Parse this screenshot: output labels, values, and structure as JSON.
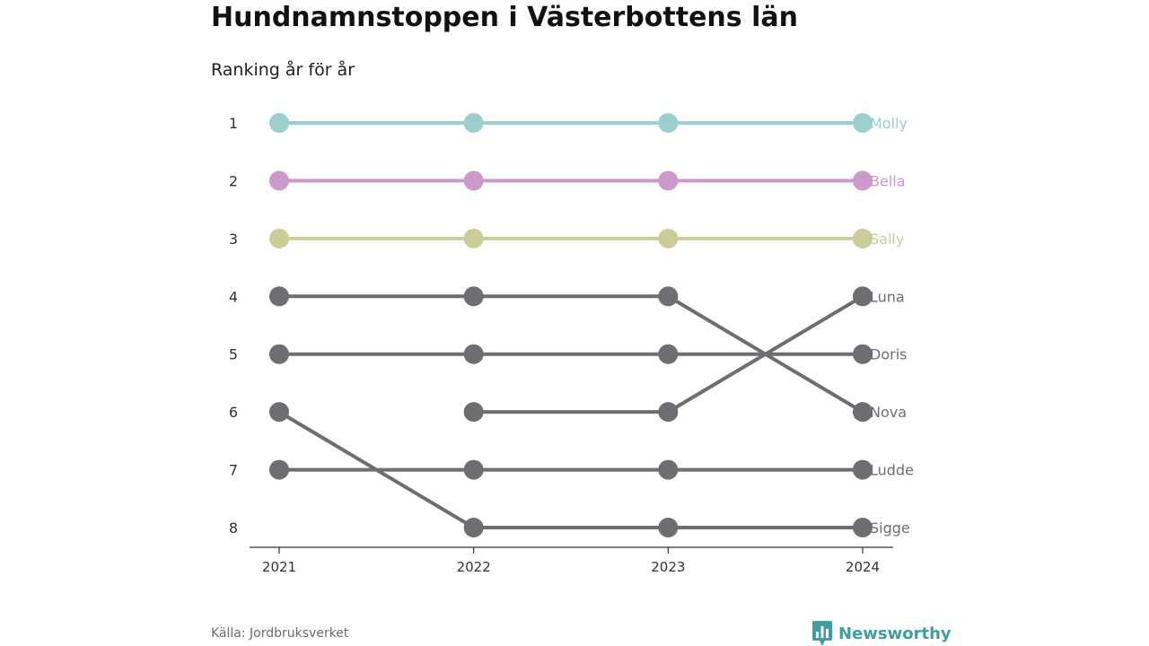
{
  "title": "Hundnamnstoppen i Västerbottens län",
  "subtitle": "Ranking år för år",
  "source": "Källa: Jordbruksverket",
  "brand": {
    "name": "Newsworthy",
    "icon": "newsworthy-logo-icon",
    "color": "#3f9ea0"
  },
  "chart_data": {
    "type": "line",
    "x": [
      "2021",
      "2022",
      "2023",
      "2024"
    ],
    "y_ticks": [
      1,
      2,
      3,
      4,
      5,
      6,
      7,
      8
    ],
    "ylim": [
      1,
      8
    ],
    "y_reversed": true,
    "grid": false,
    "series": [
      {
        "name": "Molly",
        "color": "#9bcfcf",
        "values": [
          1,
          1,
          1,
          1
        ]
      },
      {
        "name": "Bella",
        "color": "#cc99cc",
        "values": [
          2,
          2,
          2,
          2
        ]
      },
      {
        "name": "Sally",
        "color": "#cccc99",
        "values": [
          3,
          3,
          3,
          3
        ]
      },
      {
        "name": "Luna",
        "color": "#6e6d72",
        "values": [
          null,
          6,
          6,
          4
        ]
      },
      {
        "name": "Doris",
        "color": "#6e6d72",
        "values": [
          5,
          5,
          5,
          5
        ]
      },
      {
        "name": "Nova",
        "color": "#6e6d72",
        "values": [
          4,
          4,
          4,
          6
        ]
      },
      {
        "name": "Ludde",
        "color": "#6e6d72",
        "values": [
          7,
          7,
          7,
          7
        ]
      },
      {
        "name": "Sigge",
        "color": "#6e6d72",
        "values": [
          6,
          8,
          8,
          8
        ]
      }
    ]
  }
}
